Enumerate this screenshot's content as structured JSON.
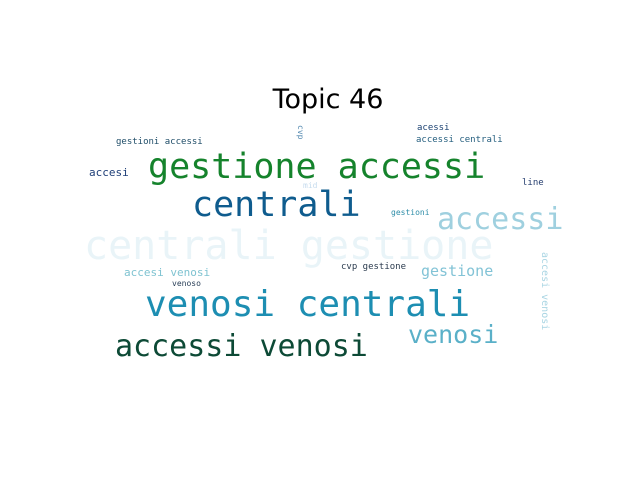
{
  "title": "Topic 46",
  "words": [
    {
      "text": "centrali gestione",
      "color": "#e9f4f8"
    },
    {
      "text": "gestione accessi",
      "color": "#15832c"
    },
    {
      "text": "centrali",
      "color": "#0f5c8e"
    },
    {
      "text": "accessi",
      "color": "#9fd0df"
    },
    {
      "text": "venosi centrali",
      "color": "#1d8eb2"
    },
    {
      "text": "accessi venosi",
      "color": "#0d4a36"
    },
    {
      "text": "venosi",
      "color": "#5ab0c8"
    },
    {
      "text": "gestione",
      "color": "#82c3d6"
    },
    {
      "text": "accesi venosi",
      "color": "#7fc3d1"
    },
    {
      "text": "gestioni accessi",
      "color": "#1f4d68"
    },
    {
      "text": "accesi",
      "color": "#1f3f78"
    },
    {
      "text": "acessi",
      "color": "#1c4272"
    },
    {
      "text": "accessi centrali",
      "color": "#245e7e"
    },
    {
      "text": "line",
      "color": "#243d6e"
    },
    {
      "text": "cvp gestione",
      "color": "#2b3b4e"
    },
    {
      "text": "gestioni",
      "color": "#2e8da8"
    },
    {
      "text": "venoso",
      "color": "#2a3f58"
    },
    {
      "text": "mid",
      "color": "#c6dcee"
    },
    {
      "text": "cvp",
      "color": "#4f86ae"
    },
    {
      "text": "accesi venosi",
      "color": "#a9d5e3"
    }
  ]
}
